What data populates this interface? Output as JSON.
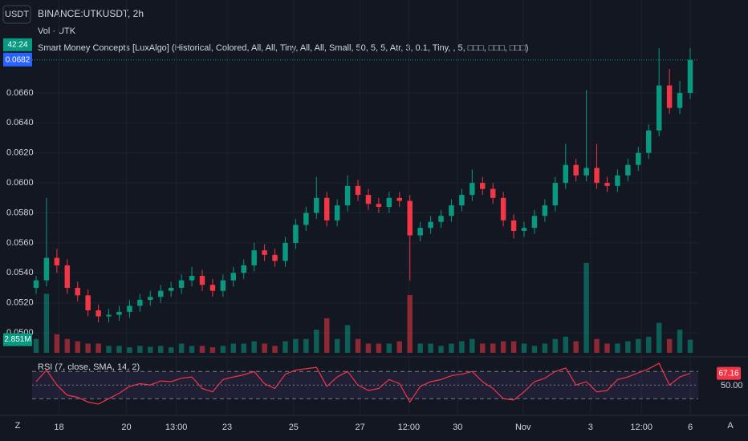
{
  "chart_data": {
    "type": "candlestick",
    "symbol": "BINANCE:UTKUSDT, 2h",
    "currency_button": "USDT",
    "volume_title": "Vol · UTK",
    "indicator_title": "Smart Money Concepts [LuxAlgo] (Historical, Colored, All, All, Tiny, All, All, Small, 50, 5, 5, Atr, 3, 0.1, Tiny, , 5, □□□, □□□, □□□)",
    "rsi_title": "RSI (7, close, SMA, 14, 2)",
    "countdown": "42:24",
    "last_price": 0.0682,
    "volume_label": "2.851M",
    "rsi_last": 67.16,
    "up_color": "#089981",
    "down_color": "#f23645",
    "rsi_color": "#f23645",
    "grid": true,
    "ylim": [
      0.0484,
      0.0722
    ],
    "yticks": [
      {
        "value": 0.05,
        "label": "0.0500"
      },
      {
        "value": 0.052,
        "label": "0.0520"
      },
      {
        "value": 0.054,
        "label": "0.0540"
      },
      {
        "value": 0.056,
        "label": "0.0560"
      },
      {
        "value": 0.058,
        "label": "0.0580"
      },
      {
        "value": 0.06,
        "label": "0.0600"
      },
      {
        "value": 0.062,
        "label": "0.0620"
      },
      {
        "value": 0.064,
        "label": "0.0640"
      },
      {
        "value": 0.066,
        "label": "0.0660"
      }
    ],
    "xlim": [
      -0.5,
      64.5
    ],
    "xticks": [
      {
        "value": 2.2,
        "label": "18"
      },
      {
        "value": 8.7,
        "label": "20"
      },
      {
        "value": 13.5,
        "label": "13:00"
      },
      {
        "value": 18.4,
        "label": "23"
      },
      {
        "value": 24.8,
        "label": "25"
      },
      {
        "value": 31.2,
        "label": "27"
      },
      {
        "value": 35.9,
        "label": "12:00"
      },
      {
        "value": 40.6,
        "label": "30"
      },
      {
        "value": 46.9,
        "label": "Nov"
      },
      {
        "value": 53.4,
        "label": "3"
      },
      {
        "value": 58.3,
        "label": "12:00"
      },
      {
        "value": 63,
        "label": "6"
      }
    ],
    "candles": [
      [
        0.053,
        0.0538,
        0.0526,
        0.0535
      ],
      [
        0.0535,
        0.059,
        0.0531,
        0.055
      ],
      [
        0.055,
        0.0556,
        0.054,
        0.0545
      ],
      [
        0.0545,
        0.0549,
        0.0526,
        0.053
      ],
      [
        0.053,
        0.0534,
        0.0521,
        0.0525
      ],
      [
        0.0525,
        0.0529,
        0.0511,
        0.0515
      ],
      [
        0.0515,
        0.0519,
        0.0507,
        0.0511
      ],
      [
        0.0511,
        0.0516,
        0.0507,
        0.0512
      ],
      [
        0.0512,
        0.0518,
        0.0508,
        0.0514
      ],
      [
        0.0514,
        0.0522,
        0.051,
        0.0518
      ],
      [
        0.0518,
        0.0526,
        0.0514,
        0.0522
      ],
      [
        0.0522,
        0.0528,
        0.0518,
        0.0524
      ],
      [
        0.0524,
        0.0532,
        0.052,
        0.0528
      ],
      [
        0.0528,
        0.0534,
        0.0524,
        0.053
      ],
      [
        0.053,
        0.0539,
        0.0526,
        0.0535
      ],
      [
        0.0535,
        0.0544,
        0.0531,
        0.0538
      ],
      [
        0.0538,
        0.0542,
        0.0528,
        0.0532
      ],
      [
        0.0532,
        0.0536,
        0.0524,
        0.0528
      ],
      [
        0.0528,
        0.0539,
        0.0524,
        0.0535
      ],
      [
        0.0535,
        0.0544,
        0.0531,
        0.054
      ],
      [
        0.054,
        0.0549,
        0.0536,
        0.0545
      ],
      [
        0.0545,
        0.056,
        0.0541,
        0.0555
      ],
      [
        0.0555,
        0.0559,
        0.0548,
        0.0552
      ],
      [
        0.0552,
        0.0556,
        0.0544,
        0.0548
      ],
      [
        0.0548,
        0.0564,
        0.0544,
        0.056
      ],
      [
        0.056,
        0.0576,
        0.0556,
        0.0572
      ],
      [
        0.0572,
        0.0584,
        0.0568,
        0.058
      ],
      [
        0.058,
        0.0604,
        0.0576,
        0.059
      ],
      [
        0.059,
        0.0594,
        0.0571,
        0.0575
      ],
      [
        0.0575,
        0.0589,
        0.0571,
        0.0585
      ],
      [
        0.0585,
        0.0605,
        0.0581,
        0.0598
      ],
      [
        0.0598,
        0.0602,
        0.0588,
        0.0592
      ],
      [
        0.0592,
        0.0596,
        0.0582,
        0.0586
      ],
      [
        0.0586,
        0.059,
        0.058,
        0.0584
      ],
      [
        0.0584,
        0.0594,
        0.058,
        0.059
      ],
      [
        0.059,
        0.0594,
        0.0584,
        0.0588
      ],
      [
        0.0588,
        0.0592,
        0.0535,
        0.0565
      ],
      [
        0.0565,
        0.0574,
        0.0561,
        0.057
      ],
      [
        0.057,
        0.0578,
        0.0566,
        0.0574
      ],
      [
        0.0574,
        0.0582,
        0.057,
        0.0578
      ],
      [
        0.0578,
        0.0589,
        0.0574,
        0.0585
      ],
      [
        0.0585,
        0.0596,
        0.0581,
        0.0592
      ],
      [
        0.0592,
        0.0609,
        0.0588,
        0.06
      ],
      [
        0.06,
        0.0604,
        0.0592,
        0.0596
      ],
      [
        0.0596,
        0.06,
        0.0586,
        0.059
      ],
      [
        0.059,
        0.0594,
        0.0571,
        0.0575
      ],
      [
        0.0575,
        0.0579,
        0.0563,
        0.0568
      ],
      [
        0.0568,
        0.0574,
        0.0564,
        0.057
      ],
      [
        0.057,
        0.0582,
        0.0566,
        0.0578
      ],
      [
        0.0578,
        0.0589,
        0.0574,
        0.0585
      ],
      [
        0.0585,
        0.0604,
        0.0581,
        0.06
      ],
      [
        0.06,
        0.0626,
        0.0596,
        0.0612
      ],
      [
        0.0612,
        0.0616,
        0.0601,
        0.0605
      ],
      [
        0.0605,
        0.0662,
        0.0601,
        0.061
      ],
      [
        0.061,
        0.0626,
        0.0596,
        0.06
      ],
      [
        0.06,
        0.0604,
        0.0594,
        0.0598
      ],
      [
        0.0598,
        0.0609,
        0.0594,
        0.0605
      ],
      [
        0.0605,
        0.0616,
        0.0601,
        0.0612
      ],
      [
        0.0612,
        0.0624,
        0.0608,
        0.062
      ],
      [
        0.062,
        0.0639,
        0.0616,
        0.0635
      ],
      [
        0.0635,
        0.069,
        0.0631,
        0.0665
      ],
      [
        0.0665,
        0.0676,
        0.0646,
        0.065
      ],
      [
        0.065,
        0.0668,
        0.0646,
        0.066
      ],
      [
        0.066,
        0.069,
        0.0656,
        0.0682
      ]
    ],
    "volumes": [
      3,
      12.8,
      4,
      3,
      2.5,
      2,
      2,
      1.5,
      1.5,
      1.2,
      1.5,
      1.3,
      1.5,
      1.2,
      2,
      1.5,
      1.5,
      1.2,
      1.5,
      2,
      2,
      2.5,
      2,
      1.5,
      2.5,
      3,
      3,
      5,
      7.5,
      3,
      6,
      3,
      2,
      2,
      2,
      2.5,
      12.5,
      2,
      2,
      1.5,
      2,
      2.5,
      3,
      2,
      2,
      2.5,
      2.5,
      2,
      1.5,
      2,
      3,
      3.5,
      2.5,
      19.5,
      3,
      2,
      2,
      2.5,
      3,
      3.5,
      6.5,
      3,
      5,
      2.851
    ],
    "vlim": [
      0,
      20
    ],
    "rsi": [
      55,
      72,
      50,
      35,
      32,
      25,
      22,
      30,
      38,
      48,
      52,
      50,
      56,
      55,
      60,
      62,
      45,
      40,
      58,
      62,
      65,
      70,
      52,
      45,
      66,
      72,
      74,
      76,
      48,
      62,
      70,
      50,
      42,
      45,
      58,
      52,
      25,
      48,
      55,
      58,
      64,
      66,
      70,
      55,
      45,
      30,
      28,
      40,
      55,
      60,
      70,
      75,
      50,
      55,
      40,
      42,
      58,
      62,
      68,
      74,
      82,
      50,
      62,
      67.16
    ],
    "rsi_ylim": [
      9,
      88
    ],
    "rsi_bands": [
      30,
      70
    ],
    "rsi_yticks": [
      {
        "value": 50,
        "label": "50.00"
      }
    ],
    "corner_left": "Z",
    "corner_right": "A"
  }
}
